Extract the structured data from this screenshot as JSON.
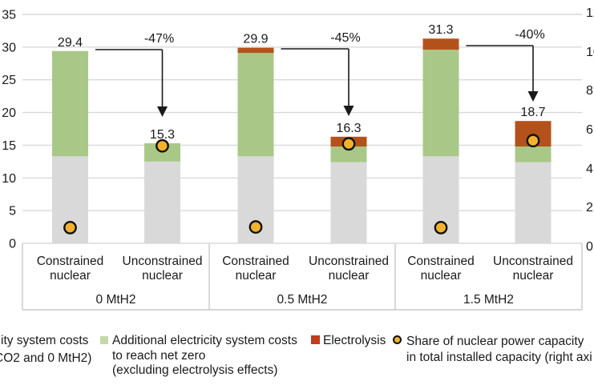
{
  "chart_data": {
    "type": "bar",
    "stacked": true,
    "title": "",
    "left_axis": {
      "ticks": [
        0,
        5,
        10,
        15,
        20,
        25,
        30,
        35
      ],
      "min": 0,
      "max": 35,
      "grid": true
    },
    "right_axis": {
      "clipped_tick_fragments": [
        "12",
        "10",
        "8",
        "6",
        "4",
        "2",
        "0"
      ]
    },
    "colors": {
      "gray_segment": "#d9d9d9",
      "green_segment": "#a9c888",
      "red_segment": "#b4521b",
      "marker_fill": "#f2b32c",
      "marker_stroke": "#111111",
      "grid": "#d9d9d9",
      "band_border": "#c9c9c9",
      "arrow": "#1a1a1a",
      "text": "#1a1a1a",
      "legend_green": "#c5d8ab",
      "legend_red": "#c13d1c"
    },
    "groups": [
      {
        "label": "0 MtH2",
        "reduction_label": "-47%",
        "bars": [
          {
            "category_line1": "Constrained",
            "category_line2": "nuclear",
            "total_label": "29.4",
            "segments": {
              "gray": 13.3,
              "green": 16.1,
              "red": 0
            },
            "marker_value": 2.4
          },
          {
            "category_line1": "Unconstrained",
            "category_line2": "nuclear",
            "total_label": "15.3",
            "segments": {
              "gray": 12.5,
              "green": 2.8,
              "red": 0
            },
            "marker_value": 14.9
          }
        ]
      },
      {
        "label": "0.5 MtH2",
        "reduction_label": "-45%",
        "bars": [
          {
            "category_line1": "Constrained",
            "category_line2": "nuclear",
            "total_label": "29.9",
            "segments": {
              "gray": 13.3,
              "green": 15.8,
              "red": 0.8
            },
            "marker_value": 2.5
          },
          {
            "category_line1": "Unconstrained",
            "category_line2": "nuclear",
            "total_label": "16.3",
            "segments": {
              "gray": 12.4,
              "green": 2.4,
              "red": 1.5
            },
            "marker_value": 15.2
          }
        ]
      },
      {
        "label": "1.5 MtH2",
        "reduction_label": "-40%",
        "bars": [
          {
            "category_line1": "Constrained",
            "category_line2": "nuclear",
            "total_label": "31.3",
            "segments": {
              "gray": 13.3,
              "green": 16.3,
              "red": 1.7
            },
            "marker_value": 2.4
          },
          {
            "category_line1": "Unconstrained",
            "category_line2": "nuclear",
            "total_label": "18.7",
            "segments": {
              "gray": 12.4,
              "green": 2.4,
              "red": 3.9
            },
            "marker_value": 15.7
          }
        ]
      }
    ]
  },
  "legend": {
    "item1": {
      "line1": "ity system costs",
      "line2": "CO2 and 0 MtH2)"
    },
    "item2": {
      "line1": "Additional electricity system costs",
      "line2": "to reach net zero",
      "line3": "(excluding electrolysis effects)"
    },
    "item3": {
      "label": "Electrolysis"
    },
    "item4": {
      "line1": "Share of nuclear power capacity",
      "line2": "in total installed capacity (right axi"
    }
  }
}
